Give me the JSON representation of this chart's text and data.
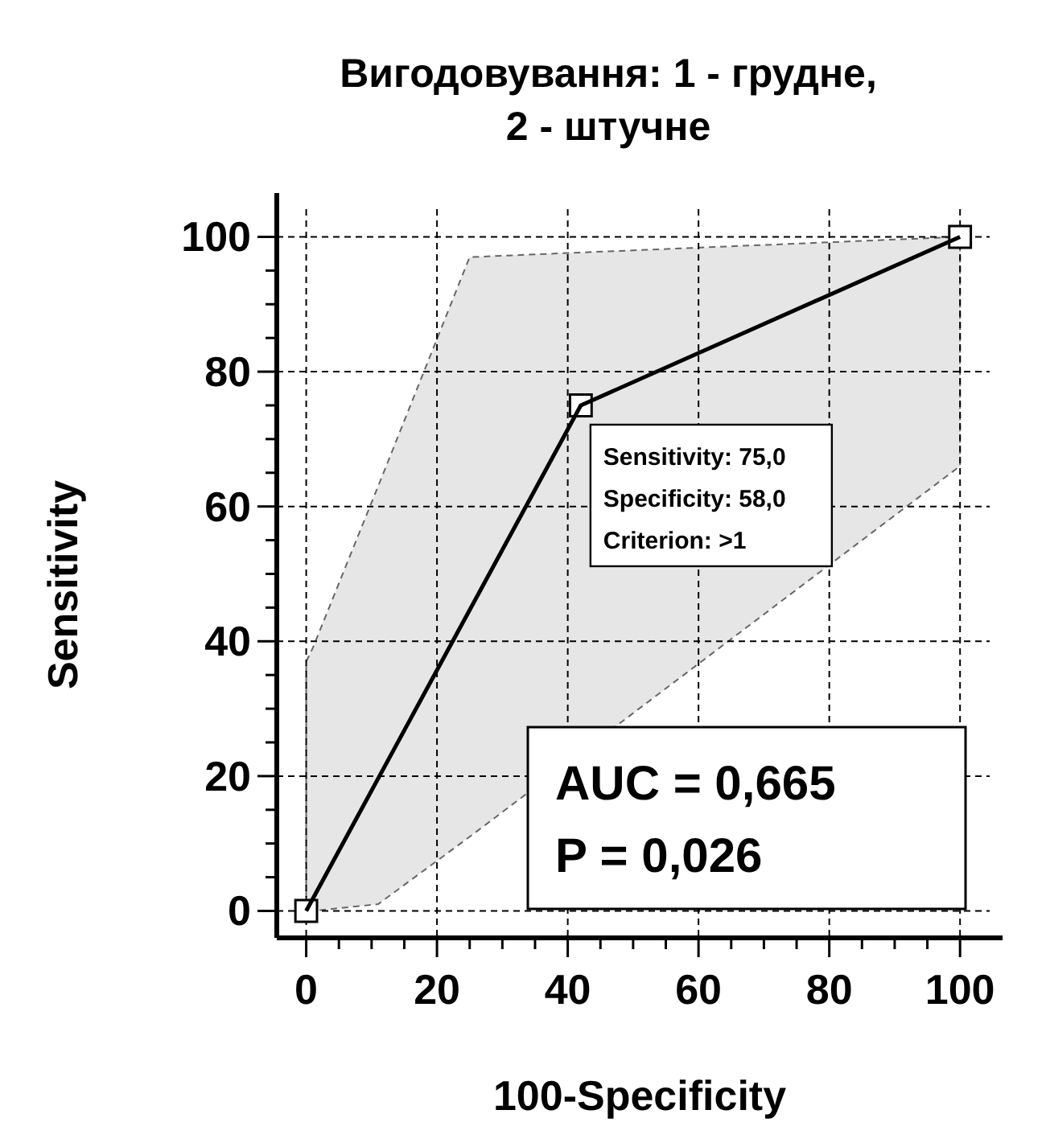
{
  "chart_data": {
    "type": "line",
    "title": "Вигодовування: 1 - грудне,\n2 - штучне",
    "xlabel": "100-Specificity",
    "ylabel": "Sensitivity",
    "xlim": [
      -4.5,
      106.5
    ],
    "ylim": [
      -4,
      106.5
    ],
    "xticks": [
      0,
      {
        "value": 5,
        "label": null
      },
      {
        "value": 10,
        "label": null
      },
      {
        "value": 15,
        "label": null
      },
      20,
      {
        "value": 25,
        "label": null
      },
      {
        "value": 30,
        "label": null
      },
      {
        "value": 35,
        "label": null
      },
      40,
      {
        "value": 45,
        "label": null
      },
      {
        "value": 50,
        "label": null
      },
      {
        "value": 55,
        "label": null
      },
      60,
      {
        "value": 65,
        "label": null
      },
      {
        "value": 70,
        "label": null
      },
      {
        "value": 75,
        "label": null
      },
      80,
      {
        "value": 85,
        "label": null
      },
      {
        "value": 90,
        "label": null
      },
      {
        "value": 95,
        "label": null
      },
      100
    ],
    "yticks": [
      0,
      {
        "value": 5,
        "label": null
      },
      {
        "value": 10,
        "label": null
      },
      {
        "value": 15,
        "label": null
      },
      20,
      {
        "value": 25,
        "label": null
      },
      {
        "value": 30,
        "label": null
      },
      {
        "value": 35,
        "label": null
      },
      40,
      {
        "value": 45,
        "label": null
      },
      {
        "value": 50,
        "label": null
      },
      {
        "value": 55,
        "label": null
      },
      60,
      {
        "value": 65,
        "label": null
      },
      {
        "value": 70,
        "label": null
      },
      {
        "value": 75,
        "label": null
      },
      80,
      {
        "value": 85,
        "label": null
      },
      {
        "value": 90,
        "label": null
      },
      {
        "value": 95,
        "label": null
      },
      100
    ],
    "grid": true,
    "marker": "square",
    "line_style": "solid",
    "series": [
      {
        "color": "#000000",
        "x": [
          0,
          42,
          100
        ],
        "values": [
          0,
          75,
          100
        ]
      },
      {
        "type": "line",
        "color": "#e6e6e6",
        "line_style": "dashed",
        "marker": "none",
        "x": [
          0,
          1,
          11,
          25,
          100
        ],
        "values": [
          null,
          null,
          null,
          null,
          null
        ],
        "lower": [
          0,
          0,
          1,
          11,
          66
        ],
        "upper": [
          37,
          39,
          63,
          97,
          100
        ]
      }
    ],
    "annotations": [
      {
        "text": "Sensitivity: 75,0\nSpecificity: 58,0\nCriterion: >1",
        "x": 42,
        "y": 75
      },
      "AUC = 0,665\nP = 0,026"
    ]
  }
}
